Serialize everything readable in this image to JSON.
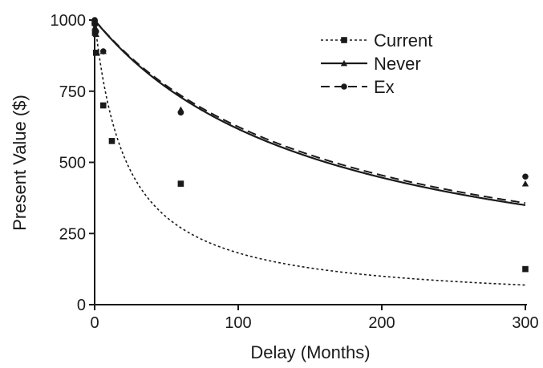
{
  "chart_data": {
    "type": "scatter",
    "title": "",
    "xlabel": "Delay (Months)",
    "ylabel": "Present Value ($)",
    "xlim": [
      0,
      300
    ],
    "ylim": [
      0,
      1000
    ],
    "xticks": [
      0,
      100,
      200,
      300
    ],
    "yticks": [
      0,
      250,
      500,
      750,
      1000
    ],
    "grid": false,
    "legend_position": "top-right",
    "series": [
      {
        "name": "Current",
        "marker": "square",
        "line_style": "dotted",
        "x": [
          0.03,
          0.25,
          1,
          6,
          12,
          60,
          300
        ],
        "y": [
          990,
          955,
          885,
          700,
          575,
          425,
          125
        ],
        "fit_k": 0.045
      },
      {
        "name": "Never",
        "marker": "triangle",
        "line_style": "solid",
        "x": [
          0.03,
          0.25,
          1,
          6,
          60,
          300
        ],
        "y": [
          995,
          975,
          950,
          890,
          685,
          425
        ],
        "fit_k": 0.0062
      },
      {
        "name": "Ex",
        "marker": "circle",
        "line_style": "dashed",
        "x": [
          0.03,
          0.25,
          1,
          6,
          60,
          300
        ],
        "y": [
          1000,
          985,
          960,
          890,
          675,
          450
        ],
        "fit_k": 0.006
      }
    ]
  }
}
